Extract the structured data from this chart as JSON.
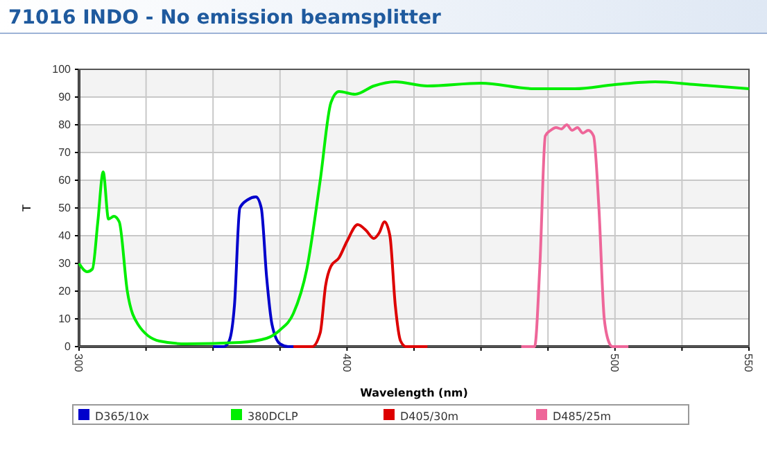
{
  "chart_data": {
    "type": "line",
    "title": "71016 INDO - No emission beamsplitter",
    "xlabel": "Wavelength (nm)",
    "ylabel": "T",
    "xlim": [
      300,
      550
    ],
    "xticks": [
      300,
      {
        "value": 325,
        "label": null
      },
      {
        "value": 350,
        "label": null
      },
      {
        "value": 375,
        "label": null
      },
      400,
      {
        "value": 425,
        "label": null
      },
      {
        "value": 450,
        "label": null
      },
      {
        "value": 475,
        "label": null
      },
      500,
      {
        "value": 525,
        "label": null
      },
      550
    ],
    "ylim": [
      0,
      100
    ],
    "yticks": [
      0,
      10,
      20,
      30,
      40,
      50,
      60,
      70,
      80,
      90,
      100
    ],
    "grid": true,
    "legend": "bottom",
    "marker": "none",
    "line_style": "solid",
    "series": [
      {
        "name": "D365/10x",
        "color": "#0000cc",
        "x": [
          350,
          354,
          356,
          358,
          360,
          363,
          366,
          368,
          370,
          372,
          375,
          378,
          385
        ],
        "values": [
          0,
          0,
          2,
          15,
          50,
          53,
          54,
          50,
          25,
          8,
          1,
          0,
          0
        ]
      },
      {
        "name": "380DCLP",
        "color": "#00ee00",
        "x": [
          300,
          303,
          305,
          307,
          309,
          311,
          313,
          315,
          318,
          322,
          330,
          340,
          360,
          370,
          375,
          380,
          385,
          390,
          394,
          397,
          403,
          410,
          418,
          430,
          450,
          470,
          485,
          500,
          515,
          530,
          550
        ],
        "values": [
          30,
          27,
          28,
          45,
          63,
          46,
          47,
          45,
          20,
          8,
          2,
          1,
          1.5,
          3,
          6,
          12,
          28,
          60,
          88,
          92,
          91,
          94,
          95.5,
          94,
          95,
          93,
          93,
          94.5,
          95.5,
          94.5,
          93
        ]
      },
      {
        "name": "D405/30m",
        "color": "#dd0000",
        "x": [
          380,
          387,
          390,
          392,
          394,
          397,
          400,
          404,
          407,
          410,
          412,
          414,
          416,
          418,
          420,
          422,
          430
        ],
        "values": [
          0,
          0,
          5,
          22,
          29,
          32,
          38,
          44,
          42,
          39,
          41,
          45,
          40,
          15,
          2,
          0,
          0
        ]
      },
      {
        "name": "D485/25m",
        "color": "#ee6699",
        "x": [
          465,
          470,
          472,
          474,
          476,
          478,
          480,
          482,
          484,
          486,
          488,
          490,
          492,
          494,
          496,
          498,
          499,
          505
        ],
        "values": [
          0,
          0,
          30,
          76,
          78,
          79,
          78.5,
          80,
          78,
          79,
          77,
          78,
          76,
          50,
          10,
          1,
          0,
          0
        ]
      }
    ]
  }
}
